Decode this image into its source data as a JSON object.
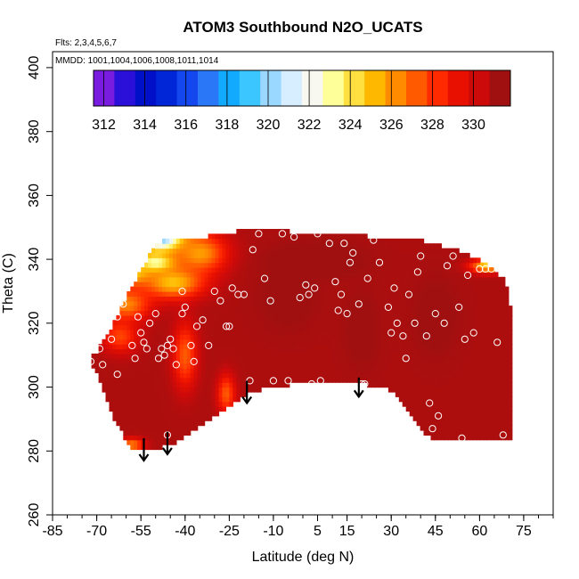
{
  "chart_data": {
    "type": "heatmap",
    "title": "ATOM3 Southbound N2O_UCATS",
    "flights_label": "Flts: 2,3,4,5,6,7",
    "dates_label": "MMDD: 1001,1004,1006,1008,1011,1014",
    "xlabel": "Latitude (deg N)",
    "ylabel": "Theta (C)",
    "xlim": [
      -85,
      85
    ],
    "ylim": [
      260,
      405
    ],
    "x_ticks": [
      -85,
      -70,
      -55,
      -40,
      -25,
      -10,
      5,
      15,
      30,
      45,
      60,
      75
    ],
    "x_tick_labels": [
      "-85",
      "-70",
      "-55",
      "-40",
      "-25",
      "-10",
      "5",
      "15",
      "30",
      "45",
      "60",
      "75"
    ],
    "x_minor_step": 5,
    "y_ticks": [
      260,
      280,
      300,
      320,
      340,
      360,
      380,
      400
    ],
    "y_tick_labels": [
      "260",
      "280",
      "300",
      "320",
      "340",
      "360",
      "380",
      "400"
    ],
    "colorbar": {
      "min": 311.5,
      "max": 331.8,
      "tick_values": [
        312,
        314,
        316,
        318,
        320,
        322,
        324,
        326,
        328,
        330
      ],
      "tick_labels": [
        "312",
        "314",
        "316",
        "318",
        "320",
        "322",
        "324",
        "326",
        "328",
        "330"
      ],
      "colors": [
        "#7a1ce0",
        "#2a10d8",
        "#0010c8",
        "#0026d8",
        "#1448ee",
        "#2a78f8",
        "#12aaff",
        "#3cc6ff",
        "#9ad8ff",
        "#d6eeff",
        "#f8f8f0",
        "#ffff9a",
        "#ffe040",
        "#ffb800",
        "#ff8c00",
        "#ff5a00",
        "#ff2a00",
        "#e81000",
        "#cc0a0a",
        "#a01010"
      ]
    },
    "field": {
      "base_value": 331.5,
      "contour": [
        [
          -72,
          309
        ],
        [
          -70,
          311
        ],
        [
          -67,
          316
        ],
        [
          -63,
          322
        ],
        [
          -60,
          328
        ],
        [
          -57,
          333
        ],
        [
          -54,
          338
        ],
        [
          -51,
          343
        ],
        [
          -48,
          346
        ],
        [
          -38,
          346
        ],
        [
          -28,
          348
        ],
        [
          -20,
          349
        ],
        [
          -10,
          349
        ],
        [
          0,
          348.5
        ],
        [
          12,
          348
        ],
        [
          25,
          347
        ],
        [
          40,
          346
        ],
        [
          52,
          343
        ],
        [
          60,
          340
        ],
        [
          65,
          337
        ],
        [
          68,
          334
        ],
        [
          70,
          330
        ],
        [
          71,
          318
        ],
        [
          71,
          300
        ],
        [
          71,
          290
        ],
        [
          71,
          284
        ],
        [
          60,
          284
        ],
        [
          50,
          284
        ],
        [
          45,
          283
        ],
        [
          42,
          285
        ],
        [
          37,
          290
        ],
        [
          33,
          296
        ],
        [
          28,
          300
        ],
        [
          20,
          301
        ],
        [
          10,
          301
        ],
        [
          0,
          301
        ],
        [
          -10,
          300.5
        ],
        [
          -18,
          298
        ],
        [
          -25,
          294
        ],
        [
          -32,
          290
        ],
        [
          -38,
          286
        ],
        [
          -42,
          283
        ],
        [
          -48,
          281
        ],
        [
          -55,
          280.5
        ],
        [
          -58,
          281
        ],
        [
          -61,
          285
        ],
        [
          -64,
          289
        ],
        [
          -66,
          294
        ],
        [
          -68,
          300
        ],
        [
          -70,
          304
        ],
        [
          -72,
          307
        ]
      ],
      "features": [
        {
          "x": -48,
          "y": 347,
          "sx": 9,
          "sy": 5,
          "value": 318.5
        },
        {
          "x": -50,
          "y": 339,
          "sx": 7,
          "sy": 3,
          "value": 322
        },
        {
          "x": -58,
          "y": 336,
          "sx": 7,
          "sy": 4,
          "value": 324.5
        },
        {
          "x": -60,
          "y": 326,
          "sx": 8,
          "sy": 5,
          "value": 326.5
        },
        {
          "x": -44,
          "y": 333,
          "sx": 10,
          "sy": 5,
          "value": 325
        },
        {
          "x": -35,
          "y": 342,
          "sx": 9,
          "sy": 6,
          "value": 326
        },
        {
          "x": -62,
          "y": 316,
          "sx": 6,
          "sy": 5,
          "value": 328
        },
        {
          "x": -40,
          "y": 310,
          "sx": 4,
          "sy": 10,
          "value": 327.5
        },
        {
          "x": -26,
          "y": 298,
          "sx": 3,
          "sy": 6,
          "value": 327.5
        },
        {
          "x": -58,
          "y": 282,
          "sx": 4,
          "sy": 2,
          "value": 326.5
        },
        {
          "x": 63,
          "y": 338,
          "sx": 6,
          "sy": 2,
          "value": 324.5
        },
        {
          "x": 20,
          "y": 318,
          "sx": 6,
          "sy": 12,
          "value": 332
        },
        {
          "x": 45,
          "y": 322,
          "sx": 8,
          "sy": 12,
          "value": 332
        },
        {
          "x": -5,
          "y": 328,
          "sx": 10,
          "sy": 10,
          "value": 332
        },
        {
          "x": 5,
          "y": 340,
          "sx": 15,
          "sy": 5,
          "value": 332.3
        }
      ],
      "samples": [
        [
          -72,
          308
        ],
        [
          -69,
          312
        ],
        [
          -68,
          307
        ],
        [
          -65,
          315
        ],
        [
          -63,
          322
        ],
        [
          -61,
          326
        ],
        [
          -58,
          313
        ],
        [
          -57,
          309
        ],
        [
          -56,
          322
        ],
        [
          -55,
          317
        ],
        [
          -54,
          314
        ],
        [
          -53,
          312
        ],
        [
          -52,
          320
        ],
        [
          -50,
          323
        ],
        [
          -49,
          309
        ],
        [
          -48,
          312
        ],
        [
          -47,
          310
        ],
        [
          -46,
          313
        ],
        [
          -45,
          315
        ],
        [
          -44,
          312
        ],
        [
          -43,
          307
        ],
        [
          -41,
          323
        ],
        [
          -40,
          325
        ],
        [
          -38,
          313
        ],
        [
          -37,
          308
        ],
        [
          -36,
          319
        ],
        [
          -34,
          321
        ],
        [
          -32,
          313
        ],
        [
          -30,
          330
        ],
        [
          -28,
          327
        ],
        [
          -26,
          319
        ],
        [
          -25,
          319
        ],
        [
          -24,
          331
        ],
        [
          -22,
          329
        ],
        [
          -20,
          329
        ],
        [
          -18,
          302
        ],
        [
          -17,
          343
        ],
        [
          -15,
          348
        ],
        [
          -13,
          334
        ],
        [
          -11,
          327
        ],
        [
          -10,
          302
        ],
        [
          -7,
          348
        ],
        [
          -5,
          302
        ],
        [
          -3,
          347
        ],
        [
          -1,
          328
        ],
        [
          1,
          332
        ],
        [
          2,
          329
        ],
        [
          3,
          301
        ],
        [
          4,
          331
        ],
        [
          5,
          348
        ],
        [
          6,
          302
        ],
        [
          7,
          349
        ],
        [
          9,
          345
        ],
        [
          11,
          333
        ],
        [
          12,
          324
        ],
        [
          13,
          329
        ],
        [
          14,
          345
        ],
        [
          15,
          323
        ],
        [
          16,
          339
        ],
        [
          17,
          342
        ],
        [
          19,
          326
        ],
        [
          20,
          301
        ],
        [
          21,
          301
        ],
        [
          22,
          334
        ],
        [
          24,
          346
        ],
        [
          26,
          339
        ],
        [
          28,
          297
        ],
        [
          29,
          325
        ],
        [
          30,
          317
        ],
        [
          31,
          331
        ],
        [
          32,
          320
        ],
        [
          34,
          316
        ],
        [
          35,
          309
        ],
        [
          36,
          329
        ],
        [
          38,
          320
        ],
        [
          39,
          336
        ],
        [
          40,
          341
        ],
        [
          42,
          316
        ],
        [
          43,
          295
        ],
        [
          45,
          323
        ],
        [
          46,
          291
        ],
        [
          48,
          320
        ],
        [
          49,
          338
        ],
        [
          51,
          341
        ],
        [
          53,
          325
        ],
        [
          54,
          284
        ],
        [
          55,
          315
        ],
        [
          56,
          335
        ],
        [
          58,
          317
        ],
        [
          60,
          337
        ],
        [
          62,
          337
        ],
        [
          64,
          337
        ],
        [
          66,
          314
        ],
        [
          68,
          285
        ],
        [
          44,
          287
        ],
        [
          -60,
          283
        ],
        [
          -46,
          285
        ],
        [
          -63,
          304
        ],
        [
          -41,
          330
        ],
        [
          33,
          284
        ]
      ]
    },
    "arrows": [
      {
        "x": -54,
        "y_top": 284,
        "y_bottom": 277
      },
      {
        "x": -46,
        "y_top": 286,
        "y_bottom": 279
      },
      {
        "x": -19,
        "y_top": 302,
        "y_bottom": 295
      },
      {
        "x": 19,
        "y_top": 303,
        "y_bottom": 297
      }
    ]
  }
}
